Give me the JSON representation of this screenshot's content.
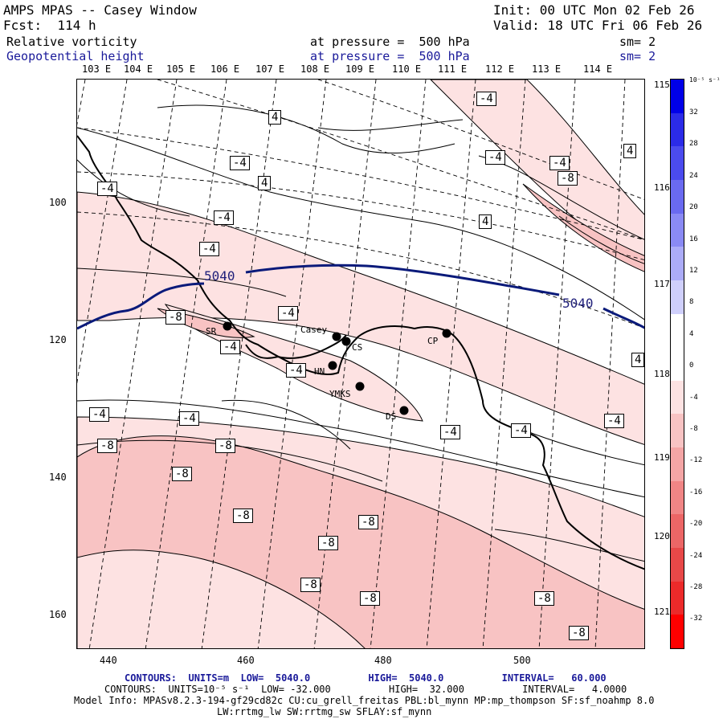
{
  "header": {
    "title": "AMPS MPAS -- Casey Window",
    "init": "Init: 00 UTC Mon 02 Feb 26",
    "forecast": "Fcst:  114 h",
    "valid": "Valid: 18 UTC Fri 06 Feb 26",
    "field1_name": "Relative vorticity",
    "field1_level": "at pressure =  500 hPa",
    "field1_sm": "sm= 2",
    "field2_name": "Geopotential height",
    "field2_level": "at pressure =  500 hPa",
    "field2_sm": "sm= 2"
  },
  "lon_top": [
    "103 E",
    "104 E",
    "105 E",
    "106 E",
    "107 E",
    "108 E",
    "109 E",
    "110 E",
    "111 E",
    "112 E",
    "113 E",
    "114 E"
  ],
  "lon_right": [
    "115 E",
    "116 E",
    "117 E",
    "118 E",
    "119 E",
    "120 E",
    "121 E"
  ],
  "y_ticks": [
    "100",
    "120",
    "140",
    "160"
  ],
  "x_ticks": [
    "440",
    "460",
    "480",
    "500"
  ],
  "vorticity_labels": [
    "-4",
    "-4",
    "-4",
    "-4",
    "-4",
    "-4",
    "-4",
    "-4",
    "-4",
    "-4",
    "-4",
    "-4",
    "-4",
    "-4",
    "-4",
    "-8",
    "-8",
    "-8",
    "-8",
    "-8",
    "-8",
    "-8",
    "-8",
    "-8",
    "-8",
    "-8",
    "-8",
    "4",
    "4",
    "4",
    "4",
    "4"
  ],
  "height_labels": [
    "5040",
    "5040"
  ],
  "stations": [
    {
      "name": "SR"
    },
    {
      "name": "Casey"
    },
    {
      "name": "CS"
    },
    {
      "name": "HN"
    },
    {
      "name": "YMKS"
    },
    {
      "name": "DS"
    },
    {
      "name": "CP"
    }
  ],
  "colorbar": {
    "unit": "10⁻⁵ s⁻¹",
    "labels": [
      "32",
      "28",
      "24",
      "20",
      "16",
      "12",
      "8",
      "4",
      "0",
      "-4",
      "-8",
      "-12",
      "-16",
      "-20",
      "-24",
      "-28",
      "-32"
    ],
    "colors": [
      "#0000e8",
      "#2b2be8",
      "#4b4bee",
      "#6a6af0",
      "#8a8af4",
      "#acacf8",
      "#cfcffb",
      "#ffffff",
      "#ffffff",
      "#fde2e2",
      "#f8c3c3",
      "#f4a5a5",
      "#f08585",
      "#ec6666",
      "#e84848",
      "#ec2a2a",
      "#ff0000"
    ]
  },
  "footer": {
    "contour1": "CONTOURS:  UNITS=m  LOW=  5040.0          HIGH=  5040.0          INTERVAL=   60.000",
    "contour2": "CONTOURS:  UNITS=10⁻⁵ s⁻¹  LOW= -32.000          HIGH=  32.000          INTERVAL=   4.0000",
    "model_info": "Model Info: MPASv8.2.3-194-gf29cd82c CU:cu_grell_freitas PBL:bl_mynn MP:mp_thompson SF:sf_noahmp 8.0",
    "model_info2": "LW:rrtmg_lw SW:rrtmg_sw SFLAY:sf_mynn"
  },
  "colors": {
    "height_contour": "#0a1a7a",
    "neg4_fill": "#fde2e2",
    "neg8_fill": "#f8c3c3",
    "pos4_fill": "#ffffff",
    "coastline": "#000000"
  }
}
